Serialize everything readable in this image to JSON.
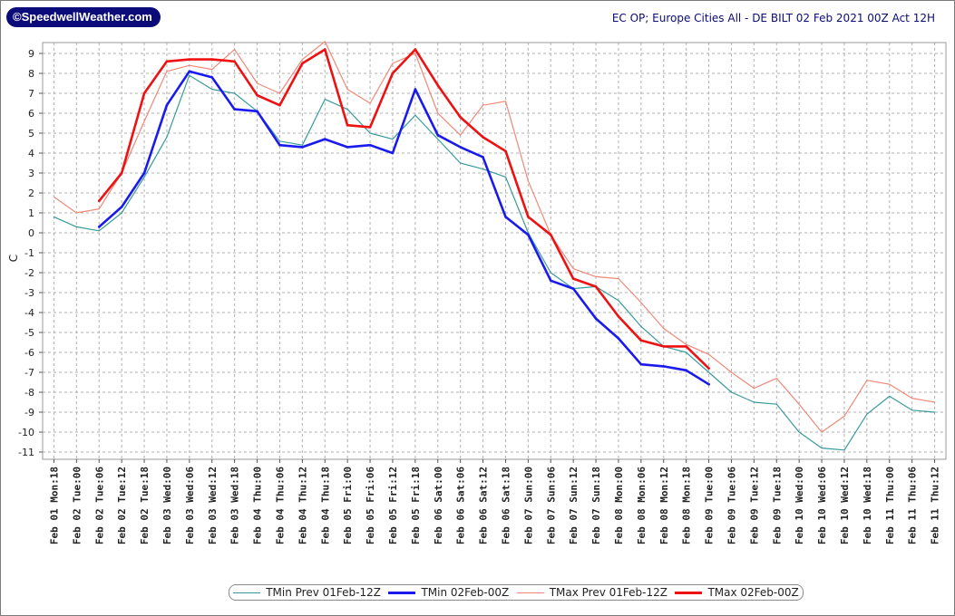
{
  "header": {
    "logo_text": "©SpeedwellWeather.com",
    "title": "EC OP; Europe Cities All - DE BILT 02 Feb 2021 00Z Act 12H"
  },
  "chart_data": {
    "type": "line",
    "ylabel": "C",
    "xlabel": "",
    "ylim": [
      -11,
      9
    ],
    "yticks": [
      9,
      8,
      7,
      6,
      5,
      4,
      3,
      2,
      1,
      0,
      -1,
      -2,
      -3,
      -4,
      -5,
      -6,
      -7,
      -8,
      -9,
      -10,
      -11
    ],
    "grid": true,
    "legend_position": "bottom",
    "categories": [
      "Feb 01 Mon:18",
      "Feb 02 Tue:00",
      "Feb 02 Tue:06",
      "Feb 02 Tue:12",
      "Feb 02 Tue:18",
      "Feb 03 Wed:00",
      "Feb 03 Wed:06",
      "Feb 03 Wed:12",
      "Feb 03 Wed:18",
      "Feb 04 Thu:00",
      "Feb 04 Thu:06",
      "Feb 04 Thu:12",
      "Feb 04 Thu:18",
      "Feb 05 Fri:00",
      "Feb 05 Fri:06",
      "Feb 05 Fri:12",
      "Feb 05 Fri:18",
      "Feb 06 Sat:00",
      "Feb 06 Sat:06",
      "Feb 06 Sat:12",
      "Feb 06 Sat:18",
      "Feb 07 Sun:00",
      "Feb 07 Sun:06",
      "Feb 07 Sun:12",
      "Feb 07 Sun:18",
      "Feb 08 Mon:00",
      "Feb 08 Mon:06",
      "Feb 08 Mon:12",
      "Feb 08 Mon:18",
      "Feb 09 Tue:00",
      "Feb 09 Tue:06",
      "Feb 09 Tue:12",
      "Feb 09 Tue:18",
      "Feb 10 Wed:00",
      "Feb 10 Wed:06",
      "Feb 10 Wed:12",
      "Feb 10 Wed:18",
      "Feb 11 Thu:00",
      "Feb 11 Thu:06",
      "Feb 11 Thu:12"
    ],
    "series": [
      {
        "name": "TMin Prev 01Feb-12Z",
        "color": "#3a9a9a",
        "style": "thin",
        "values": [
          0.8,
          0.3,
          0.1,
          1.0,
          2.8,
          4.8,
          7.9,
          7.2,
          7.0,
          6.1,
          4.6,
          4.4,
          6.7,
          6.2,
          5.0,
          4.7,
          5.9,
          4.7,
          3.5,
          3.2,
          2.8,
          0.0,
          -2.0,
          -2.8,
          -2.7,
          -3.4,
          -4.7,
          -5.7,
          -6.0,
          -7.0,
          -8.0,
          -8.5,
          -8.6,
          -10.0,
          -10.8,
          -10.9,
          -9.1,
          -8.2,
          -8.9,
          -9.0
        ]
      },
      {
        "name": "TMin 02Feb-00Z",
        "color": "#1a1aee",
        "style": "thick",
        "values": [
          null,
          null,
          0.3,
          1.3,
          3.0,
          6.4,
          8.1,
          7.8,
          6.2,
          6.1,
          4.4,
          4.3,
          4.7,
          4.3,
          4.4,
          4.0,
          7.2,
          4.9,
          4.3,
          3.8,
          0.8,
          -0.1,
          -2.4,
          -2.8,
          -4.3,
          -5.3,
          -6.6,
          -6.7,
          -6.9,
          -7.6,
          null,
          null,
          null,
          null,
          null,
          null,
          null,
          null,
          null,
          null
        ]
      },
      {
        "name": "TMax Prev 01Feb-12Z",
        "color": "#f08878",
        "style": "thin",
        "values": [
          1.8,
          1.0,
          1.2,
          3.0,
          5.6,
          8.1,
          8.4,
          8.2,
          9.2,
          7.5,
          7.0,
          8.7,
          9.6,
          7.2,
          6.5,
          8.5,
          9.0,
          6.0,
          4.9,
          6.4,
          6.6,
          2.6,
          -0.1,
          -1.8,
          -2.2,
          -2.3,
          -3.5,
          -4.8,
          -5.6,
          -6.1,
          -7.0,
          -7.8,
          -7.3,
          -8.6,
          -10.0,
          -9.2,
          -7.4,
          -7.6,
          -8.3,
          -8.5
        ]
      },
      {
        "name": "TMax 02Feb-00Z",
        "color": "#ee1111",
        "style": "thick",
        "values": [
          null,
          null,
          1.6,
          3.0,
          7.0,
          8.6,
          8.7,
          8.7,
          8.6,
          6.9,
          6.4,
          8.5,
          9.2,
          5.4,
          5.3,
          8.0,
          9.2,
          7.4,
          5.8,
          4.8,
          4.1,
          0.8,
          -0.1,
          -2.3,
          -2.7,
          -4.2,
          -5.4,
          -5.7,
          -5.7,
          -6.8,
          null,
          null,
          null,
          null,
          null,
          null,
          null,
          null,
          null,
          null
        ]
      }
    ]
  }
}
